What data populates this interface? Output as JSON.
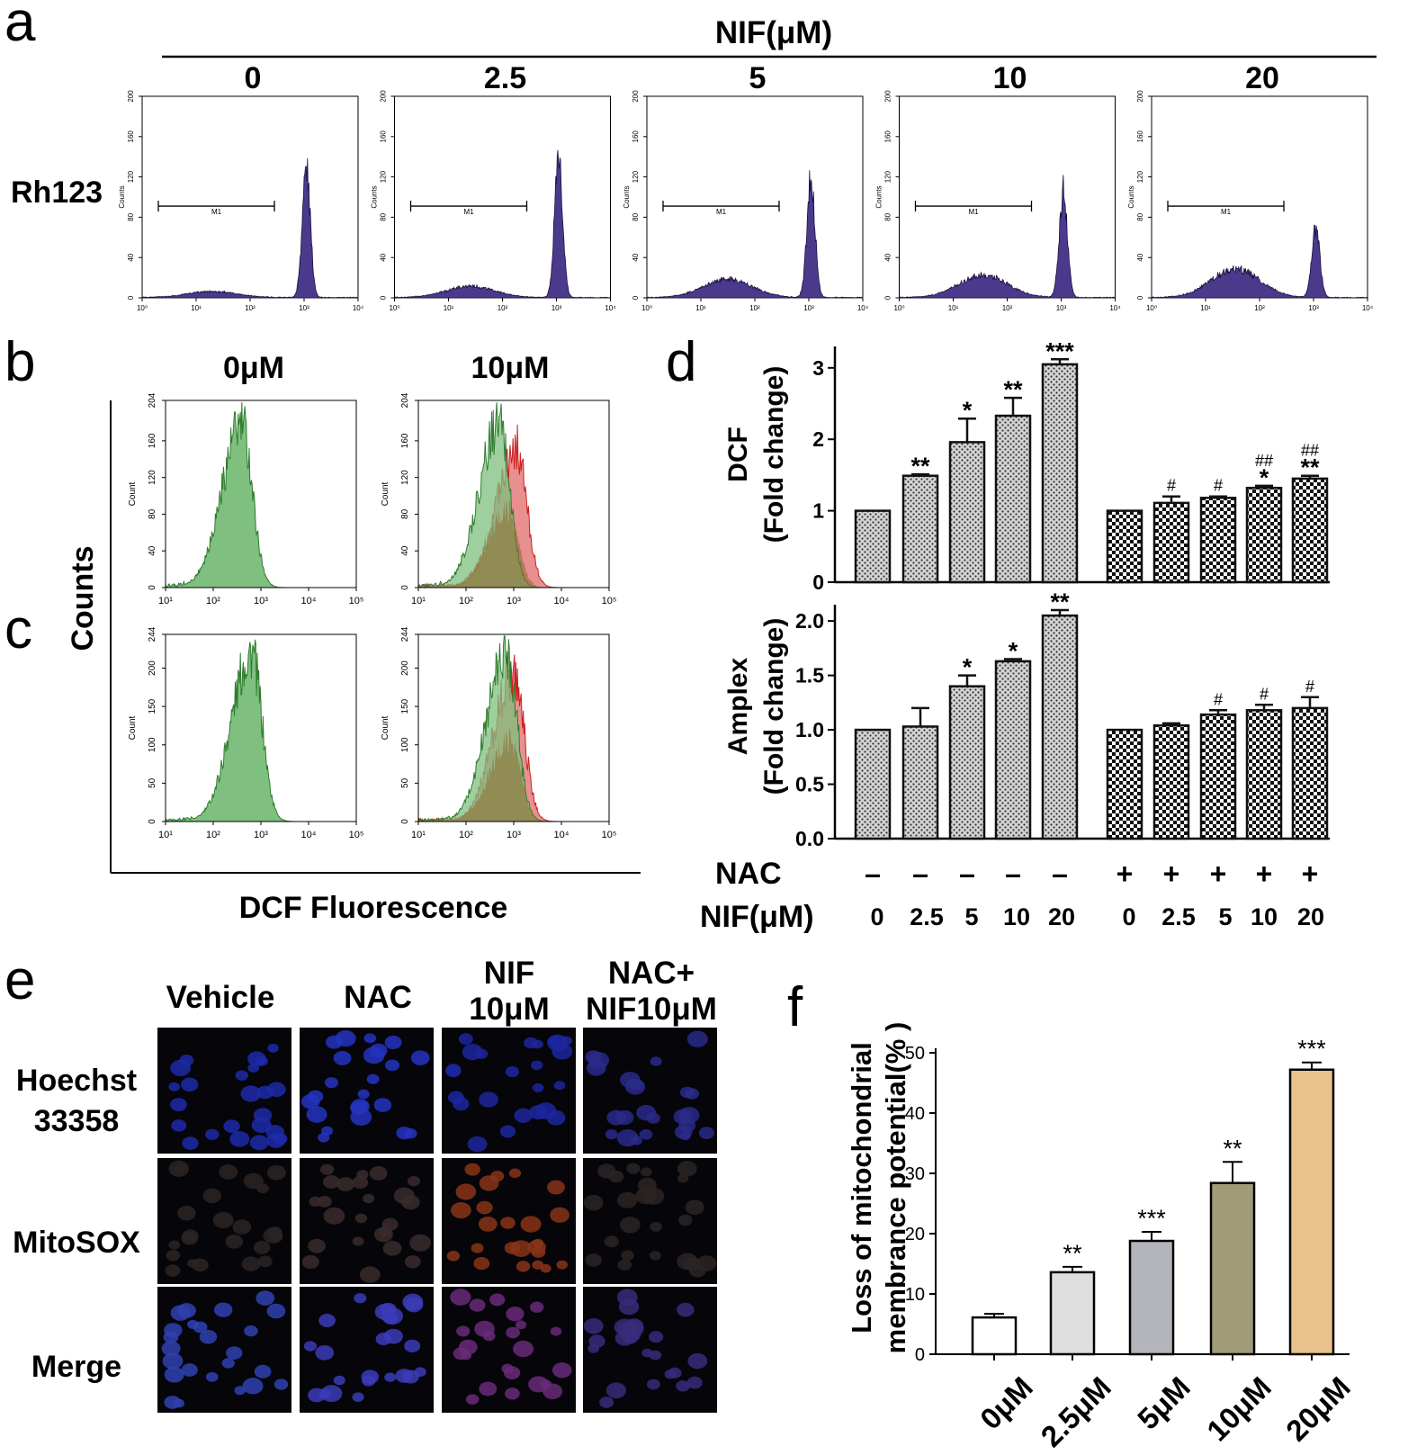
{
  "panel_letters": {
    "a": "a",
    "b": "b",
    "c": "c",
    "d": "d",
    "e": "e",
    "f": "f"
  },
  "colors": {
    "rh123_fill": "#4b3a8c",
    "green_fill": "#7fbf7f",
    "green_line": "#2f7d2f",
    "red_fill": "#e89090",
    "red_line": "#cc2020",
    "overlap_fill": "#8a6a2e"
  },
  "chart_data": [
    {
      "id": "a",
      "type": "area",
      "title": "NIF(μM)",
      "row_label": "Rh123",
      "doses": [
        "0",
        "2.5",
        "5",
        "10",
        "20"
      ],
      "ylabel": "Counts",
      "y_ticks": [
        "0",
        "40",
        "80",
        "120",
        "160",
        "200"
      ],
      "ylim": [
        0,
        200
      ],
      "x_ticks": [
        "10⁰",
        "10¹",
        "10²",
        "10³",
        "10⁴"
      ],
      "xlim_log": [
        0,
        4
      ],
      "marker_label": "M1",
      "marker_range_log": [
        0.3,
        2.45
      ],
      "series": [
        {
          "dose": "0",
          "peak_center_log": 3.04,
          "peak_height": 128,
          "low_center_log": 1.3,
          "low_height": 6
        },
        {
          "dose": "2.5",
          "peak_center_log": 3.04,
          "peak_height": 135,
          "low_center_log": 1.4,
          "low_height": 11
        },
        {
          "dose": "5",
          "peak_center_log": 3.04,
          "peak_height": 118,
          "low_center_log": 1.5,
          "low_height": 18
        },
        {
          "dose": "10",
          "peak_center_log": 3.04,
          "peak_height": 106,
          "low_center_log": 1.55,
          "low_height": 22
        },
        {
          "dose": "20",
          "peak_center_log": 3.04,
          "peak_height": 68,
          "low_center_log": 1.55,
          "low_height": 28
        }
      ]
    },
    {
      "id": "b",
      "type": "area",
      "columns": [
        "0μM",
        "10μM"
      ],
      "ylabel": "Count",
      "y_ticks": [
        "0",
        "40",
        "80",
        "120",
        "160",
        "204"
      ],
      "ylim": [
        0,
        204
      ],
      "x_ticks": [
        "10¹",
        "10²",
        "10³",
        "10⁴",
        "10⁵"
      ],
      "xlim_log": [
        1,
        5
      ],
      "shared_ylabel": "Counts",
      "shared_xlabel": "DCF Fluorescence",
      "panels": [
        {
          "column": "0μM",
          "green": {
            "center_log": 2.6,
            "height": 180
          }
        },
        {
          "column": "10μM",
          "green": {
            "center_log": 2.7,
            "height": 180
          },
          "red": {
            "center_log": 3.05,
            "height": 155
          }
        }
      ]
    },
    {
      "id": "c",
      "type": "area",
      "ylabel": "Count",
      "y_ticks": [
        "0",
        "50",
        "100",
        "150",
        "200",
        "244"
      ],
      "ylim": [
        0,
        244
      ],
      "x_ticks": [
        "10¹",
        "10²",
        "10³",
        "10⁴",
        "10⁵"
      ],
      "xlim_log": [
        1,
        5
      ],
      "panels": [
        {
          "column": "0μM",
          "green": {
            "center_log": 2.8,
            "height": 222
          }
        },
        {
          "column": "10μM",
          "green": {
            "center_log": 2.85,
            "height": 222
          },
          "red": {
            "center_log": 3.0,
            "height": 195
          }
        }
      ]
    },
    {
      "id": "d-dcf",
      "type": "bar",
      "ylabel_line1": "DCF",
      "ylabel_line2": "(Fold change)",
      "ylim": [
        0,
        3.3
      ],
      "y_ticks": [
        "0",
        "1",
        "2",
        "3"
      ],
      "groups": [
        {
          "nac": "–",
          "values": [
            1.0,
            1.49,
            1.96,
            2.33,
            3.05
          ],
          "errors": [
            0,
            0.02,
            0.33,
            0.25,
            0.07
          ],
          "labels": [
            "",
            "**",
            "*",
            "**",
            "***"
          ],
          "labels2": [
            "",
            "",
            "",
            "",
            ""
          ]
        },
        {
          "nac": "+",
          "values": [
            1.0,
            1.11,
            1.18,
            1.32,
            1.45
          ],
          "errors": [
            0,
            0.09,
            0.02,
            0.03,
            0.04
          ],
          "labels": [
            "",
            "",
            "",
            "*",
            "**"
          ],
          "labels2": [
            "",
            "#",
            "#",
            "##",
            "##"
          ]
        }
      ]
    },
    {
      "id": "d-amplex",
      "type": "bar",
      "ylabel_line1": "Amplex",
      "ylabel_line2": "(Fold change)",
      "ylim": [
        0,
        2.15
      ],
      "y_ticks": [
        "0.0",
        "0.5",
        "1.0",
        "1.5",
        "2.0"
      ],
      "groups": [
        {
          "nac": "–",
          "values": [
            1.0,
            1.03,
            1.4,
            1.63,
            2.05
          ],
          "errors": [
            0,
            0.17,
            0.1,
            0.02,
            0.05
          ],
          "labels": [
            "",
            "",
            "*",
            "*",
            "**"
          ],
          "labels2": [
            "",
            "",
            "",
            "",
            ""
          ]
        },
        {
          "nac": "+",
          "values": [
            1.0,
            1.04,
            1.14,
            1.18,
            1.2
          ],
          "errors": [
            0,
            0.02,
            0.04,
            0.05,
            0.1
          ],
          "labels": [
            "",
            "",
            "",
            "",
            ""
          ],
          "labels2": [
            "",
            "",
            "#",
            "#",
            "#"
          ]
        }
      ]
    },
    {
      "id": "f",
      "type": "bar",
      "ylabel_line1": "Loss of mitochondrial",
      "ylabel_line2": "membrance potential(% )",
      "ylim": [
        0,
        50
      ],
      "y_ticks": [
        "0",
        "10",
        "20",
        "30",
        "40",
        "50"
      ],
      "categories": [
        "0μM",
        "2.5μM",
        "5μM",
        "10μM",
        "20μM"
      ],
      "values": [
        6.1,
        13.6,
        18.8,
        28.4,
        47.2
      ],
      "errors": [
        0.6,
        0.9,
        1.5,
        3.5,
        1.2
      ],
      "labels": [
        "",
        "**",
        "***",
        "**",
        "***"
      ],
      "bar_colors": [
        "#ffffff",
        "#dedede",
        "#b3b5bb",
        "#a09b78",
        "#e9c18c"
      ]
    }
  ],
  "panel_d_axis": {
    "nac_label": "NAC",
    "nif_label": "NIF(μM)",
    "nac_signs": [
      "–",
      "–",
      "–",
      "–",
      "–",
      "+",
      "+",
      "+",
      "+",
      "+"
    ],
    "nif_doses": [
      "0",
      "2.5",
      "5",
      "10",
      "20",
      "0",
      "2.5",
      "5",
      "10",
      "20"
    ]
  },
  "panel_e": {
    "columns": [
      "Vehicle",
      "NAC",
      "NIF",
      "10μM",
      "NAC+",
      "NIF10μM"
    ],
    "rows": [
      "Hoechst",
      "33358",
      "MitoSOX",
      "Merge"
    ]
  }
}
